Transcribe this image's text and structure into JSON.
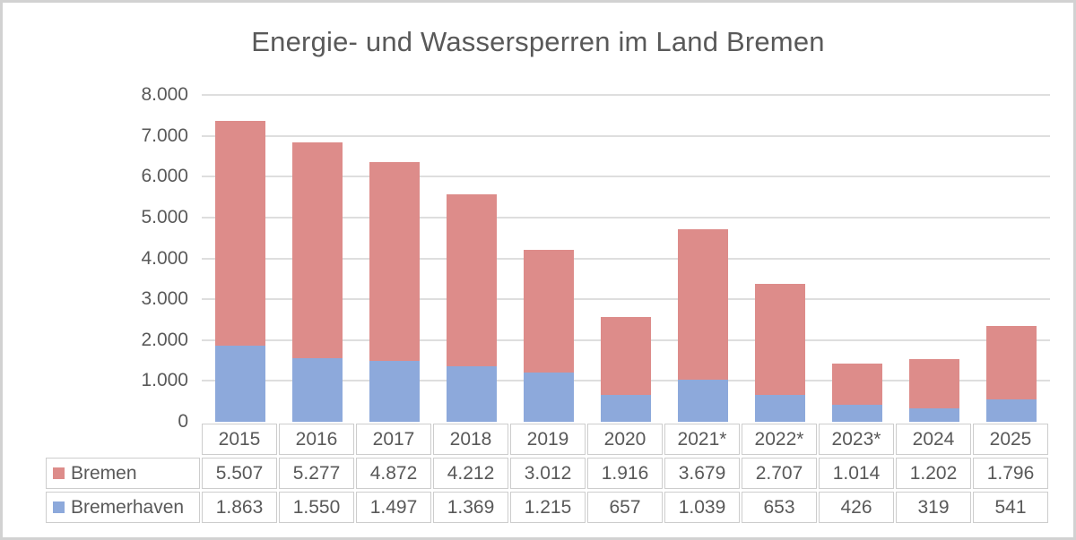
{
  "chart": {
    "title": "Energie- und Wassersperren im Land Bremen"
  },
  "chart_data": {
    "type": "bar",
    "stacked": true,
    "title": "Energie- und Wassersperren im Land Bremen",
    "xlabel": "",
    "ylabel": "",
    "categories": [
      "2015",
      "2016",
      "2017",
      "2018",
      "2019",
      "2020",
      "2021*",
      "2022*",
      "2023*",
      "2024",
      "2025"
    ],
    "series": [
      {
        "name": "Bremen",
        "color": "#dd8c8a",
        "values": [
          5507,
          5277,
          4872,
          4212,
          3012,
          1916,
          3679,
          2707,
          1014,
          1202,
          1796
        ],
        "labels": [
          "5.507",
          "5.277",
          "4.872",
          "4.212",
          "3.012",
          "1.916",
          "3.679",
          "2.707",
          "1.014",
          "1.202",
          "1.796"
        ]
      },
      {
        "name": "Bremerhaven",
        "color": "#8da9db",
        "values": [
          1863,
          1550,
          1497,
          1369,
          1215,
          657,
          1039,
          653,
          426,
          319,
          541
        ],
        "labels": [
          "1.863",
          "1.550",
          "1.497",
          "1.369",
          "1.215",
          "657",
          "1.039",
          "653",
          "426",
          "319",
          "541"
        ]
      }
    ],
    "stack_order_bottom_to_top": [
      "Bremerhaven",
      "Bremen"
    ],
    "ylim": [
      0,
      8000
    ],
    "y_ticks": [
      {
        "label": "8.000",
        "value": 8000
      },
      {
        "label": "7.000",
        "value": 7000
      },
      {
        "label": "6.000",
        "value": 6000
      },
      {
        "label": "5.000",
        "value": 5000
      },
      {
        "label": "4.000",
        "value": 4000
      },
      {
        "label": "3.000",
        "value": 3000
      },
      {
        "label": "2.000",
        "value": 2000
      },
      {
        "label": "1.000",
        "value": 1000
      },
      {
        "label": "0",
        "value": 0
      }
    ],
    "grid": true,
    "legend_position": "data-table-left",
    "colors": {
      "text": "#595959",
      "gridline": "#dedede",
      "table_border": "#cdcdcd",
      "bremen": "#dd8c8a",
      "bremerhaven": "#8da9db"
    }
  }
}
